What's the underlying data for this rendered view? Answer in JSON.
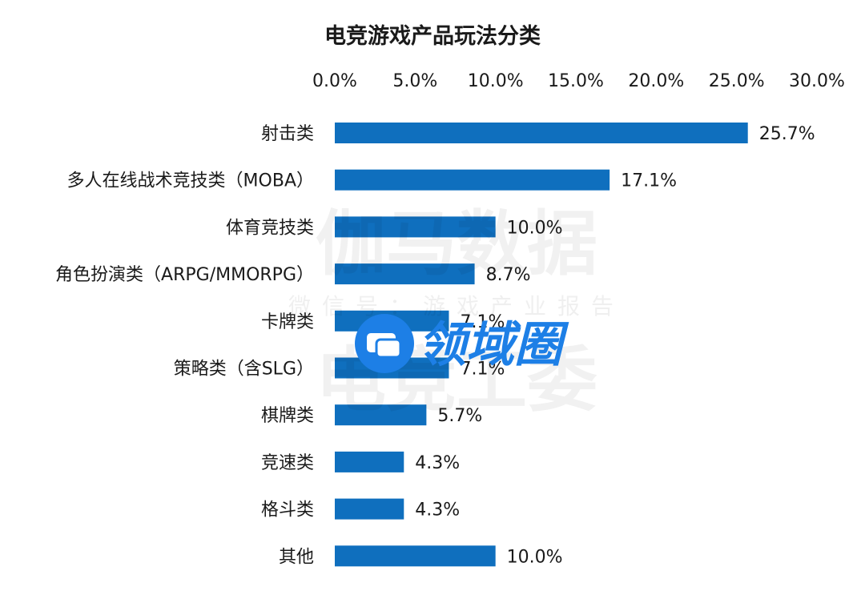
{
  "chart_data": {
    "type": "bar",
    "orientation": "horizontal",
    "title": "电竞游戏产品玩法分类",
    "categories": [
      "射击类",
      "多人在线战术竞技类（MOBA）",
      "体育竞技类",
      "角色扮演类（ARPG/MMORPG）",
      "卡牌类",
      "策略类（含SLG）",
      "棋牌类",
      "竞速类",
      "格斗类",
      "其他"
    ],
    "values": [
      25.7,
      17.1,
      10.0,
      8.7,
      7.1,
      7.1,
      5.7,
      4.3,
      4.3,
      10.0
    ],
    "value_labels": [
      "25.7%",
      "17.1%",
      "10.0%",
      "8.7%",
      "7.1%",
      "7.1%",
      "5.7%",
      "4.3%",
      "4.3%",
      "10.0%"
    ],
    "x_ticks": [
      "0.0%",
      "5.0%",
      "10.0%",
      "15.0%",
      "20.0%",
      "25.0%",
      "30.0%"
    ],
    "xlim": [
      0,
      30
    ],
    "x_axis_position": "top",
    "grid": false,
    "legend": "none",
    "bar_color": "#0f6fbe"
  },
  "watermark": {
    "line1": "伽马数据",
    "line2": "微信号：游戏产业报告",
    "line3": "电竞工委",
    "logo_text": "领域圈",
    "logo_color": "#1d7fe6"
  }
}
